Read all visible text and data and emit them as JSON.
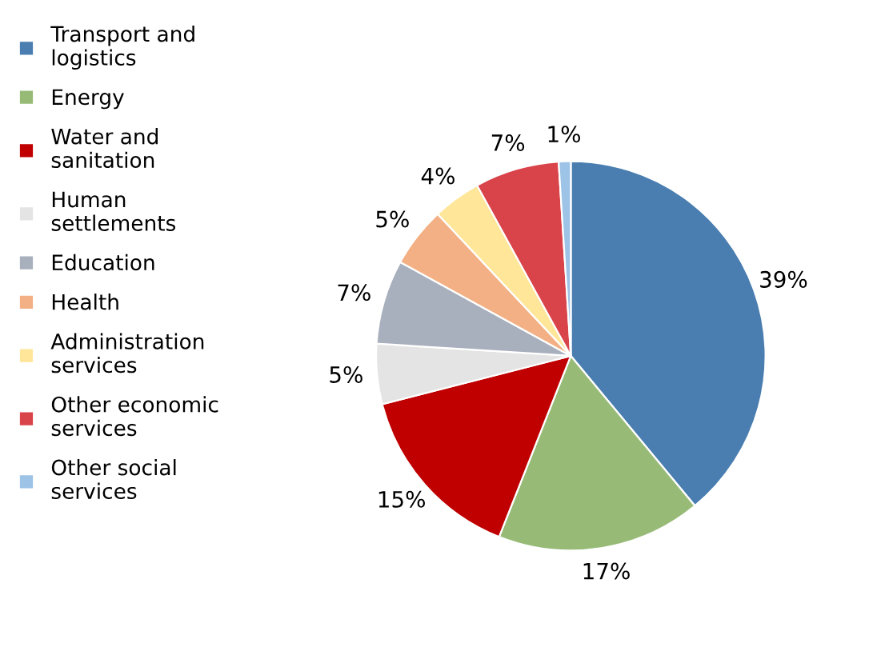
{
  "chart_data": {
    "type": "pie",
    "categories": [
      "Transport and\nlogistics",
      "Energy",
      "Water and\nsanitation",
      "Human\nsettlements",
      "Education",
      "Health",
      "Administration\nservices",
      "Other economic\nservices",
      "Other social\nservices"
    ],
    "values": [
      39,
      17,
      15,
      5,
      7,
      5,
      4,
      7,
      1
    ],
    "colors": [
      "#4a7eb0",
      "#97bb77",
      "#c00000",
      "#e4e4e4",
      "#a9b0bd",
      "#f2b084",
      "#ffe699",
      "#d9434a",
      "#9dc3e6"
    ],
    "value_labels": [
      "39%",
      "17%",
      "15%",
      "5%",
      "7%",
      "5%",
      "4%",
      "7%",
      "1%"
    ],
    "legend": "left"
  }
}
